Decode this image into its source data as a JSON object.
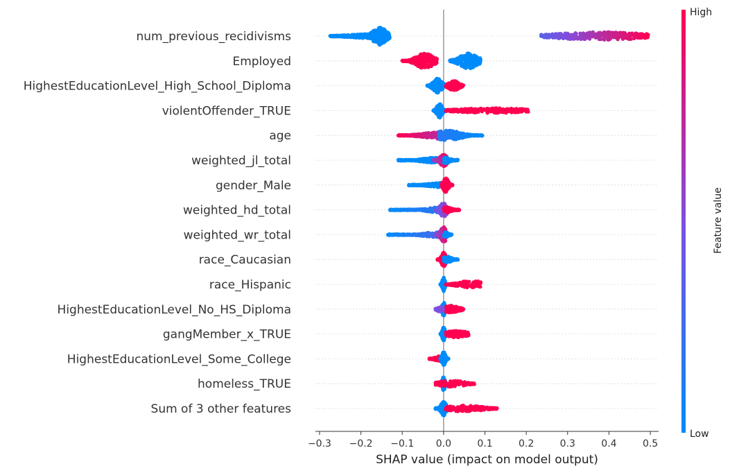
{
  "chart_data": {
    "type": "scatter",
    "subtype": "shap-beeswarm",
    "xlabel": "SHAP value (impact on model output)",
    "x_ticks": [
      -0.3,
      -0.2,
      -0.1,
      0.0,
      0.1,
      0.2,
      0.3,
      0.4,
      0.5
    ],
    "x_tick_labels": [
      "−0.3",
      "−0.2",
      "−0.1",
      "0.0",
      "0.1",
      "0.2",
      "0.3",
      "0.4",
      "0.5"
    ],
    "xlim": [
      -0.31,
      0.52
    ],
    "colorbar": {
      "title": "Feature value",
      "high_label": "High",
      "low_label": "Low",
      "low_color": "#008bfb",
      "high_color": "#ff0051"
    },
    "features": [
      {
        "name": "num_previous_recidivisms",
        "segments": [
          {
            "from": -0.275,
            "to": -0.175,
            "peak": -0.15,
            "width": 0.06,
            "h": 0.3,
            "f0": 0.0,
            "f1": 0.0,
            "n": 260
          },
          {
            "from": -0.18,
            "to": -0.13,
            "peak": -0.155,
            "width": 0.015,
            "h": 1.0,
            "f0": 0.0,
            "f1": 0.0,
            "n": 220
          },
          {
            "from": 0.235,
            "to": 0.495,
            "peak": 0.38,
            "width": 0.1,
            "h": 0.45,
            "f0": 0.35,
            "f1": 1.0,
            "n": 320
          }
        ]
      },
      {
        "name": "Employed",
        "segments": [
          {
            "from": -0.1,
            "to": -0.015,
            "peak": -0.045,
            "width": 0.02,
            "h": 0.85,
            "f0": 1.0,
            "f1": 1.0,
            "n": 250
          },
          {
            "from": 0.015,
            "to": 0.09,
            "peak": 0.06,
            "width": 0.02,
            "h": 0.85,
            "f0": 0.0,
            "f1": 0.0,
            "n": 250
          }
        ]
      },
      {
        "name": "HighestEducationLevel_High_School_Diploma",
        "segments": [
          {
            "from": -0.04,
            "to": 0.0,
            "peak": -0.015,
            "width": 0.01,
            "h": 0.8,
            "f0": 0.0,
            "f1": 0.0,
            "n": 180
          },
          {
            "from": 0.005,
            "to": 0.048,
            "peak": 0.025,
            "width": 0.012,
            "h": 0.55,
            "f0": 1.0,
            "f1": 1.0,
            "n": 160
          }
        ]
      },
      {
        "name": "violentOffender_TRUE",
        "segments": [
          {
            "from": -0.025,
            "to": 0.005,
            "peak": -0.01,
            "width": 0.006,
            "h": 0.8,
            "f0": 0.0,
            "f1": 0.0,
            "n": 200
          },
          {
            "from": 0.005,
            "to": 0.205,
            "peak": 0.12,
            "width": 0.08,
            "h": 0.28,
            "f0": 1.0,
            "f1": 1.0,
            "n": 260
          }
        ]
      },
      {
        "name": "age",
        "segments": [
          {
            "from": -0.11,
            "to": 0.0,
            "peak": -0.005,
            "width": 0.04,
            "h": 0.4,
            "f0": 1.0,
            "f1": 0.7,
            "n": 220
          },
          {
            "from": -0.012,
            "to": 0.095,
            "peak": 0.01,
            "width": 0.03,
            "h": 0.55,
            "f0": 0.15,
            "f1": 0.0,
            "n": 240
          }
        ]
      },
      {
        "name": "weighted_jl_total",
        "segments": [
          {
            "from": -0.11,
            "to": -0.01,
            "peak": -0.02,
            "width": 0.03,
            "h": 0.3,
            "f0": 0.0,
            "f1": 0.0,
            "n": 180
          },
          {
            "from": -0.025,
            "to": 0.008,
            "peak": 0.0,
            "width": 0.008,
            "h": 0.7,
            "f0": 0.55,
            "f1": 1.0,
            "n": 180
          },
          {
            "from": 0.0,
            "to": 0.035,
            "peak": 0.005,
            "width": 0.01,
            "h": 0.35,
            "f0": 0.0,
            "f1": 0.0,
            "n": 90
          }
        ]
      },
      {
        "name": "gender_Male",
        "segments": [
          {
            "from": -0.085,
            "to": 0.0,
            "peak": -0.005,
            "width": 0.03,
            "h": 0.25,
            "f0": 0.0,
            "f1": 0.0,
            "n": 180
          },
          {
            "from": -0.005,
            "to": 0.022,
            "peak": 0.005,
            "width": 0.006,
            "h": 0.8,
            "f0": 1.0,
            "f1": 1.0,
            "n": 220
          }
        ]
      },
      {
        "name": "weighted_hd_total",
        "segments": [
          {
            "from": -0.13,
            "to": -0.005,
            "peak": -0.01,
            "width": 0.03,
            "h": 0.3,
            "f0": 0.0,
            "f1": 0.2,
            "n": 200
          },
          {
            "from": -0.02,
            "to": 0.008,
            "peak": 0.0,
            "width": 0.008,
            "h": 0.8,
            "f0": 0.4,
            "f1": 0.6,
            "n": 200
          },
          {
            "from": 0.0,
            "to": 0.038,
            "peak": 0.005,
            "width": 0.012,
            "h": 0.35,
            "f0": 1.0,
            "f1": 1.0,
            "n": 100
          }
        ]
      },
      {
        "name": "weighted_wr_total",
        "segments": [
          {
            "from": -0.135,
            "to": -0.005,
            "peak": -0.01,
            "width": 0.035,
            "h": 0.3,
            "f0": 0.0,
            "f1": 0.3,
            "n": 200
          },
          {
            "from": -0.02,
            "to": 0.005,
            "peak": 0.0,
            "width": 0.007,
            "h": 0.85,
            "f0": 0.5,
            "f1": 0.9,
            "n": 200
          },
          {
            "from": 0.0,
            "to": 0.02,
            "peak": 0.005,
            "width": 0.007,
            "h": 0.3,
            "f0": 0.0,
            "f1": 0.0,
            "n": 60
          }
        ]
      },
      {
        "name": "race_Caucasian",
        "segments": [
          {
            "from": -0.015,
            "to": 0.008,
            "peak": 0.0,
            "width": 0.005,
            "h": 0.8,
            "f0": 1.0,
            "f1": 1.0,
            "n": 160
          },
          {
            "from": 0.0,
            "to": 0.035,
            "peak": 0.008,
            "width": 0.01,
            "h": 0.35,
            "f0": 0.0,
            "f1": 0.0,
            "n": 100
          }
        ]
      },
      {
        "name": "race_Hispanic",
        "segments": [
          {
            "from": -0.008,
            "to": 0.005,
            "peak": 0.0,
            "width": 0.003,
            "h": 0.8,
            "f0": 0.0,
            "f1": 0.0,
            "n": 180
          },
          {
            "from": 0.005,
            "to": 0.09,
            "peak": 0.07,
            "width": 0.03,
            "h": 0.45,
            "f0": 1.0,
            "f1": 1.0,
            "n": 150
          }
        ]
      },
      {
        "name": "HighestEducationLevel_No_HS_Diploma",
        "segments": [
          {
            "from": -0.008,
            "to": 0.005,
            "peak": 0.0,
            "width": 0.003,
            "h": 0.8,
            "f0": 0.0,
            "f1": 0.0,
            "n": 180
          },
          {
            "from": -0.02,
            "to": 0.0,
            "peak": -0.01,
            "width": 0.006,
            "h": 0.3,
            "f0": 0.5,
            "f1": 0.5,
            "n": 40
          },
          {
            "from": 0.005,
            "to": 0.048,
            "peak": 0.015,
            "width": 0.02,
            "h": 0.4,
            "f0": 1.0,
            "f1": 1.0,
            "n": 130
          }
        ]
      },
      {
        "name": "gangMember_x_TRUE",
        "segments": [
          {
            "from": -0.008,
            "to": 0.005,
            "peak": 0.0,
            "width": 0.003,
            "h": 0.8,
            "f0": 0.0,
            "f1": 0.0,
            "n": 180
          },
          {
            "from": 0.005,
            "to": 0.062,
            "peak": 0.03,
            "width": 0.025,
            "h": 0.4,
            "f0": 1.0,
            "f1": 1.0,
            "n": 130
          }
        ]
      },
      {
        "name": "HighestEducationLevel_Some_College",
        "segments": [
          {
            "from": -0.035,
            "to": 0.0,
            "peak": -0.01,
            "width": 0.01,
            "h": 0.3,
            "f0": 1.0,
            "f1": 1.0,
            "n": 70
          },
          {
            "from": -0.008,
            "to": 0.012,
            "peak": 0.0,
            "width": 0.004,
            "h": 0.8,
            "f0": 0.0,
            "f1": 0.0,
            "n": 180
          }
        ]
      },
      {
        "name": "homeless_TRUE",
        "segments": [
          {
            "from": -0.008,
            "to": 0.005,
            "peak": 0.0,
            "width": 0.003,
            "h": 0.8,
            "f0": 0.0,
            "f1": 0.0,
            "n": 180
          },
          {
            "from": -0.02,
            "to": 0.075,
            "peak": 0.02,
            "width": 0.03,
            "h": 0.35,
            "f0": 1.0,
            "f1": 1.0,
            "n": 130
          }
        ]
      },
      {
        "name": "Sum of 3 other features",
        "segments": [
          {
            "from": -0.02,
            "to": 0.008,
            "peak": 0.0,
            "width": 0.006,
            "h": 0.8,
            "f0": 0.0,
            "f1": 0.0,
            "n": 200
          },
          {
            "from": 0.005,
            "to": 0.13,
            "peak": 0.05,
            "width": 0.04,
            "h": 0.35,
            "f0": 1.0,
            "f1": 1.0,
            "n": 170
          }
        ]
      }
    ]
  }
}
